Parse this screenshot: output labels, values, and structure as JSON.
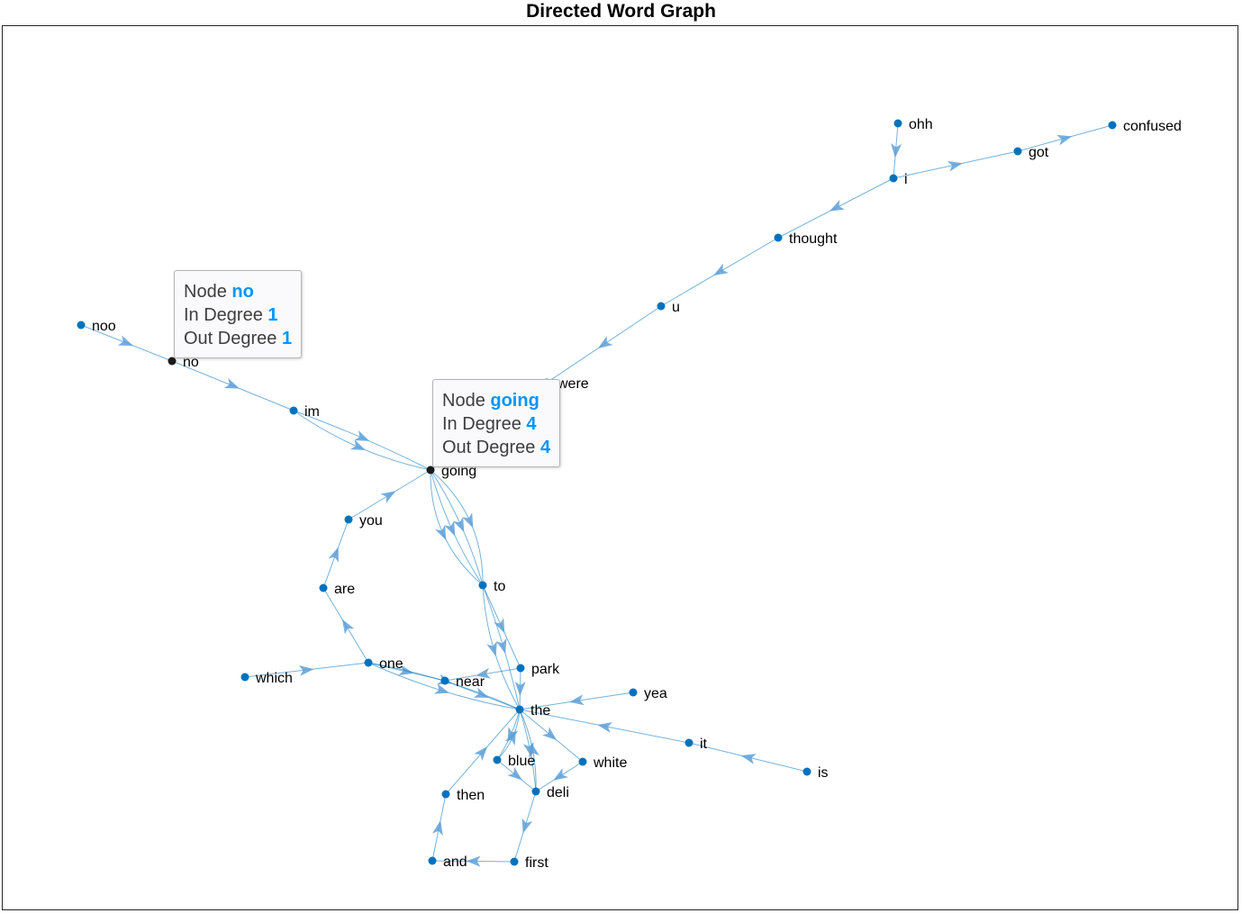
{
  "title": "Directed Word Graph",
  "colors": {
    "node": "#0072BD",
    "edge": "#0072BD",
    "arrow": "#5EA0D8",
    "selected_node": "#1a1a1a",
    "tooltip_value": "#0095ff"
  },
  "nodes": [
    "ohh",
    "i",
    "got",
    "confused",
    "thought",
    "u",
    "were",
    "noo",
    "no",
    "im",
    "going",
    "you",
    "to",
    "are",
    "park",
    "yea",
    "one",
    "near",
    "which",
    "the",
    "it",
    "is",
    "blue",
    "white",
    "deli",
    "then",
    "first",
    "and"
  ],
  "edges": [
    [
      "ohh",
      "i"
    ],
    [
      "i",
      "got"
    ],
    [
      "got",
      "confused"
    ],
    [
      "i",
      "thought"
    ],
    [
      "thought",
      "u"
    ],
    [
      "u",
      "were"
    ],
    [
      "were",
      "going"
    ],
    [
      "noo",
      "no"
    ],
    [
      "no",
      "im"
    ],
    [
      "im",
      "going"
    ],
    [
      "im",
      "going"
    ],
    [
      "going",
      "to"
    ],
    [
      "going",
      "to"
    ],
    [
      "going",
      "to"
    ],
    [
      "going",
      "to"
    ],
    [
      "to",
      "the"
    ],
    [
      "to",
      "park"
    ],
    [
      "to",
      "the"
    ],
    [
      "one",
      "are"
    ],
    [
      "are",
      "you"
    ],
    [
      "you",
      "going"
    ],
    [
      "which",
      "one"
    ],
    [
      "one",
      "near"
    ],
    [
      "one",
      "the"
    ],
    [
      "one",
      "the"
    ],
    [
      "near",
      "the"
    ],
    [
      "park",
      "near"
    ],
    [
      "park",
      "the"
    ],
    [
      "yea",
      "the"
    ],
    [
      "is",
      "it"
    ],
    [
      "it",
      "the"
    ],
    [
      "the",
      "blue"
    ],
    [
      "blue",
      "the"
    ],
    [
      "the",
      "white"
    ],
    [
      "white",
      "deli"
    ],
    [
      "the",
      "deli"
    ],
    [
      "blue",
      "deli"
    ],
    [
      "deli",
      "the"
    ],
    [
      "deli",
      "first"
    ],
    [
      "first",
      "and"
    ],
    [
      "and",
      "then"
    ],
    [
      "then",
      "the"
    ]
  ],
  "tooltips": [
    {
      "node_prefix": "Node",
      "node": "no",
      "in_prefix": "In Degree",
      "in": "1",
      "out_prefix": "Out Degree",
      "out": "1"
    },
    {
      "node_prefix": "Node",
      "node": "going",
      "in_prefix": "In Degree",
      "in": "4",
      "out_prefix": "Out Degree",
      "out": "4"
    }
  ]
}
